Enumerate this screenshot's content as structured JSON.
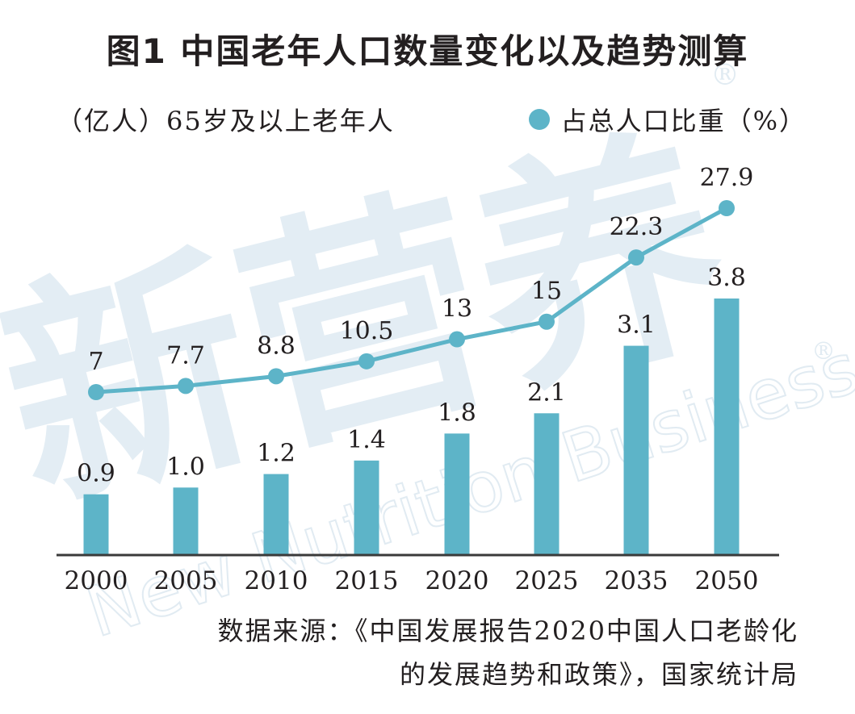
{
  "title": "图1  中国老年人口数量变化以及趋势测算",
  "legend": {
    "bar_series": "（亿人）65岁及以上老年人",
    "line_series": "占总人口比重（%）"
  },
  "source": {
    "line1": "数据来源：《中国发展报告2020中国人口老龄化",
    "line2": "的发展趋势和政策》，国家统计局"
  },
  "watermark": {
    "cn": "新营养",
    "en": "New Nutrition Business",
    "mark": "®"
  },
  "colors": {
    "bar": "#5db4c8",
    "line": "#5db4c8",
    "axis": "#3a3a3a",
    "text": "#231f20",
    "watermark": "#e3edf4"
  },
  "chart_data": {
    "type": "bar",
    "categories": [
      "2000",
      "2005",
      "2010",
      "2015",
      "2020",
      "2025",
      "2035",
      "2050"
    ],
    "series": [
      {
        "name": "65岁及以上老年人（亿人）",
        "type": "bar",
        "values": [
          0.9,
          1.0,
          1.2,
          1.4,
          1.8,
          2.1,
          3.1,
          3.8
        ]
      },
      {
        "name": "占总人口比重（%）",
        "type": "line",
        "values": [
          7,
          7.7,
          8.8,
          10.5,
          13,
          15,
          22.3,
          27.9
        ]
      }
    ],
    "bar_labels": [
      "0.9",
      "1.0",
      "1.2",
      "1.4",
      "1.8",
      "2.1",
      "3.1",
      "3.8"
    ],
    "line_labels": [
      "7",
      "7.7",
      "8.8",
      "10.5",
      "13",
      "15",
      "22.3",
      "27.9"
    ],
    "grid": false,
    "legend_position": "top"
  }
}
